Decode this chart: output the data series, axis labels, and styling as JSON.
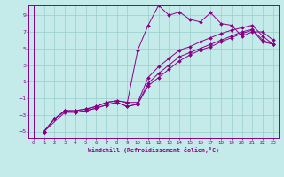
{
  "xlabel": "Windchill (Refroidissement éolien,°C)",
  "xlim": [
    -0.5,
    23.5
  ],
  "ylim": [
    -5.8,
    10.2
  ],
  "xticks": [
    0,
    1,
    2,
    3,
    4,
    5,
    6,
    7,
    8,
    9,
    10,
    11,
    12,
    13,
    14,
    15,
    16,
    17,
    18,
    19,
    20,
    21,
    22,
    23
  ],
  "yticks": [
    -5,
    -3,
    -1,
    1,
    3,
    5,
    7,
    9
  ],
  "bg_color": "#c4eaea",
  "line_color": "#880088",
  "grid_color": "#99cccc",
  "line1_x": [
    1,
    2,
    3,
    4,
    5,
    6,
    7,
    8,
    9,
    10,
    11,
    12,
    13,
    14,
    15,
    16,
    17,
    18,
    19,
    20,
    21,
    22,
    23
  ],
  "line1_y": [
    -5,
    -3.5,
    -2.5,
    -2.5,
    -2.3,
    -2.0,
    -1.5,
    -1.3,
    -1.5,
    4.8,
    7.8,
    10.2,
    9.0,
    9.4,
    8.5,
    8.2,
    9.3,
    8.0,
    7.8,
    6.5,
    7.0,
    7.0,
    6.0
  ],
  "line2_x": [
    1,
    2,
    3,
    4,
    5,
    6,
    7,
    8,
    9,
    10,
    11,
    12,
    13,
    14,
    15,
    16,
    17,
    18,
    19,
    20,
    21,
    22,
    23
  ],
  "line2_y": [
    -5,
    -3.5,
    -2.5,
    -2.5,
    -2.3,
    -2.0,
    -1.5,
    -1.3,
    -1.5,
    -1.5,
    1.5,
    2.8,
    3.8,
    4.8,
    5.2,
    5.8,
    6.3,
    6.8,
    7.2,
    7.5,
    7.8,
    6.5,
    5.5
  ],
  "line3_x": [
    1,
    2,
    3,
    4,
    5,
    6,
    7,
    8,
    9,
    10,
    11,
    12,
    13,
    14,
    15,
    16,
    17,
    18,
    19,
    20,
    21,
    22,
    23
  ],
  "line3_y": [
    -5,
    -3.5,
    -2.5,
    -2.7,
    -2.5,
    -2.2,
    -1.8,
    -1.5,
    -2.0,
    -1.7,
    0.8,
    2.0,
    3.0,
    4.0,
    4.5,
    5.0,
    5.5,
    6.0,
    6.5,
    7.0,
    7.3,
    6.0,
    5.5
  ],
  "line4_x": [
    1,
    3,
    4,
    5,
    6,
    7,
    8,
    9,
    10,
    11,
    12,
    13,
    14,
    15,
    16,
    17,
    18,
    19,
    20,
    21,
    22,
    23
  ],
  "line4_y": [
    -5,
    -2.7,
    -2.7,
    -2.5,
    -2.2,
    -1.8,
    -1.5,
    -2.0,
    -1.7,
    0.5,
    1.5,
    2.5,
    3.5,
    4.2,
    4.8,
    5.2,
    5.8,
    6.3,
    6.8,
    7.2,
    5.8,
    5.5
  ]
}
